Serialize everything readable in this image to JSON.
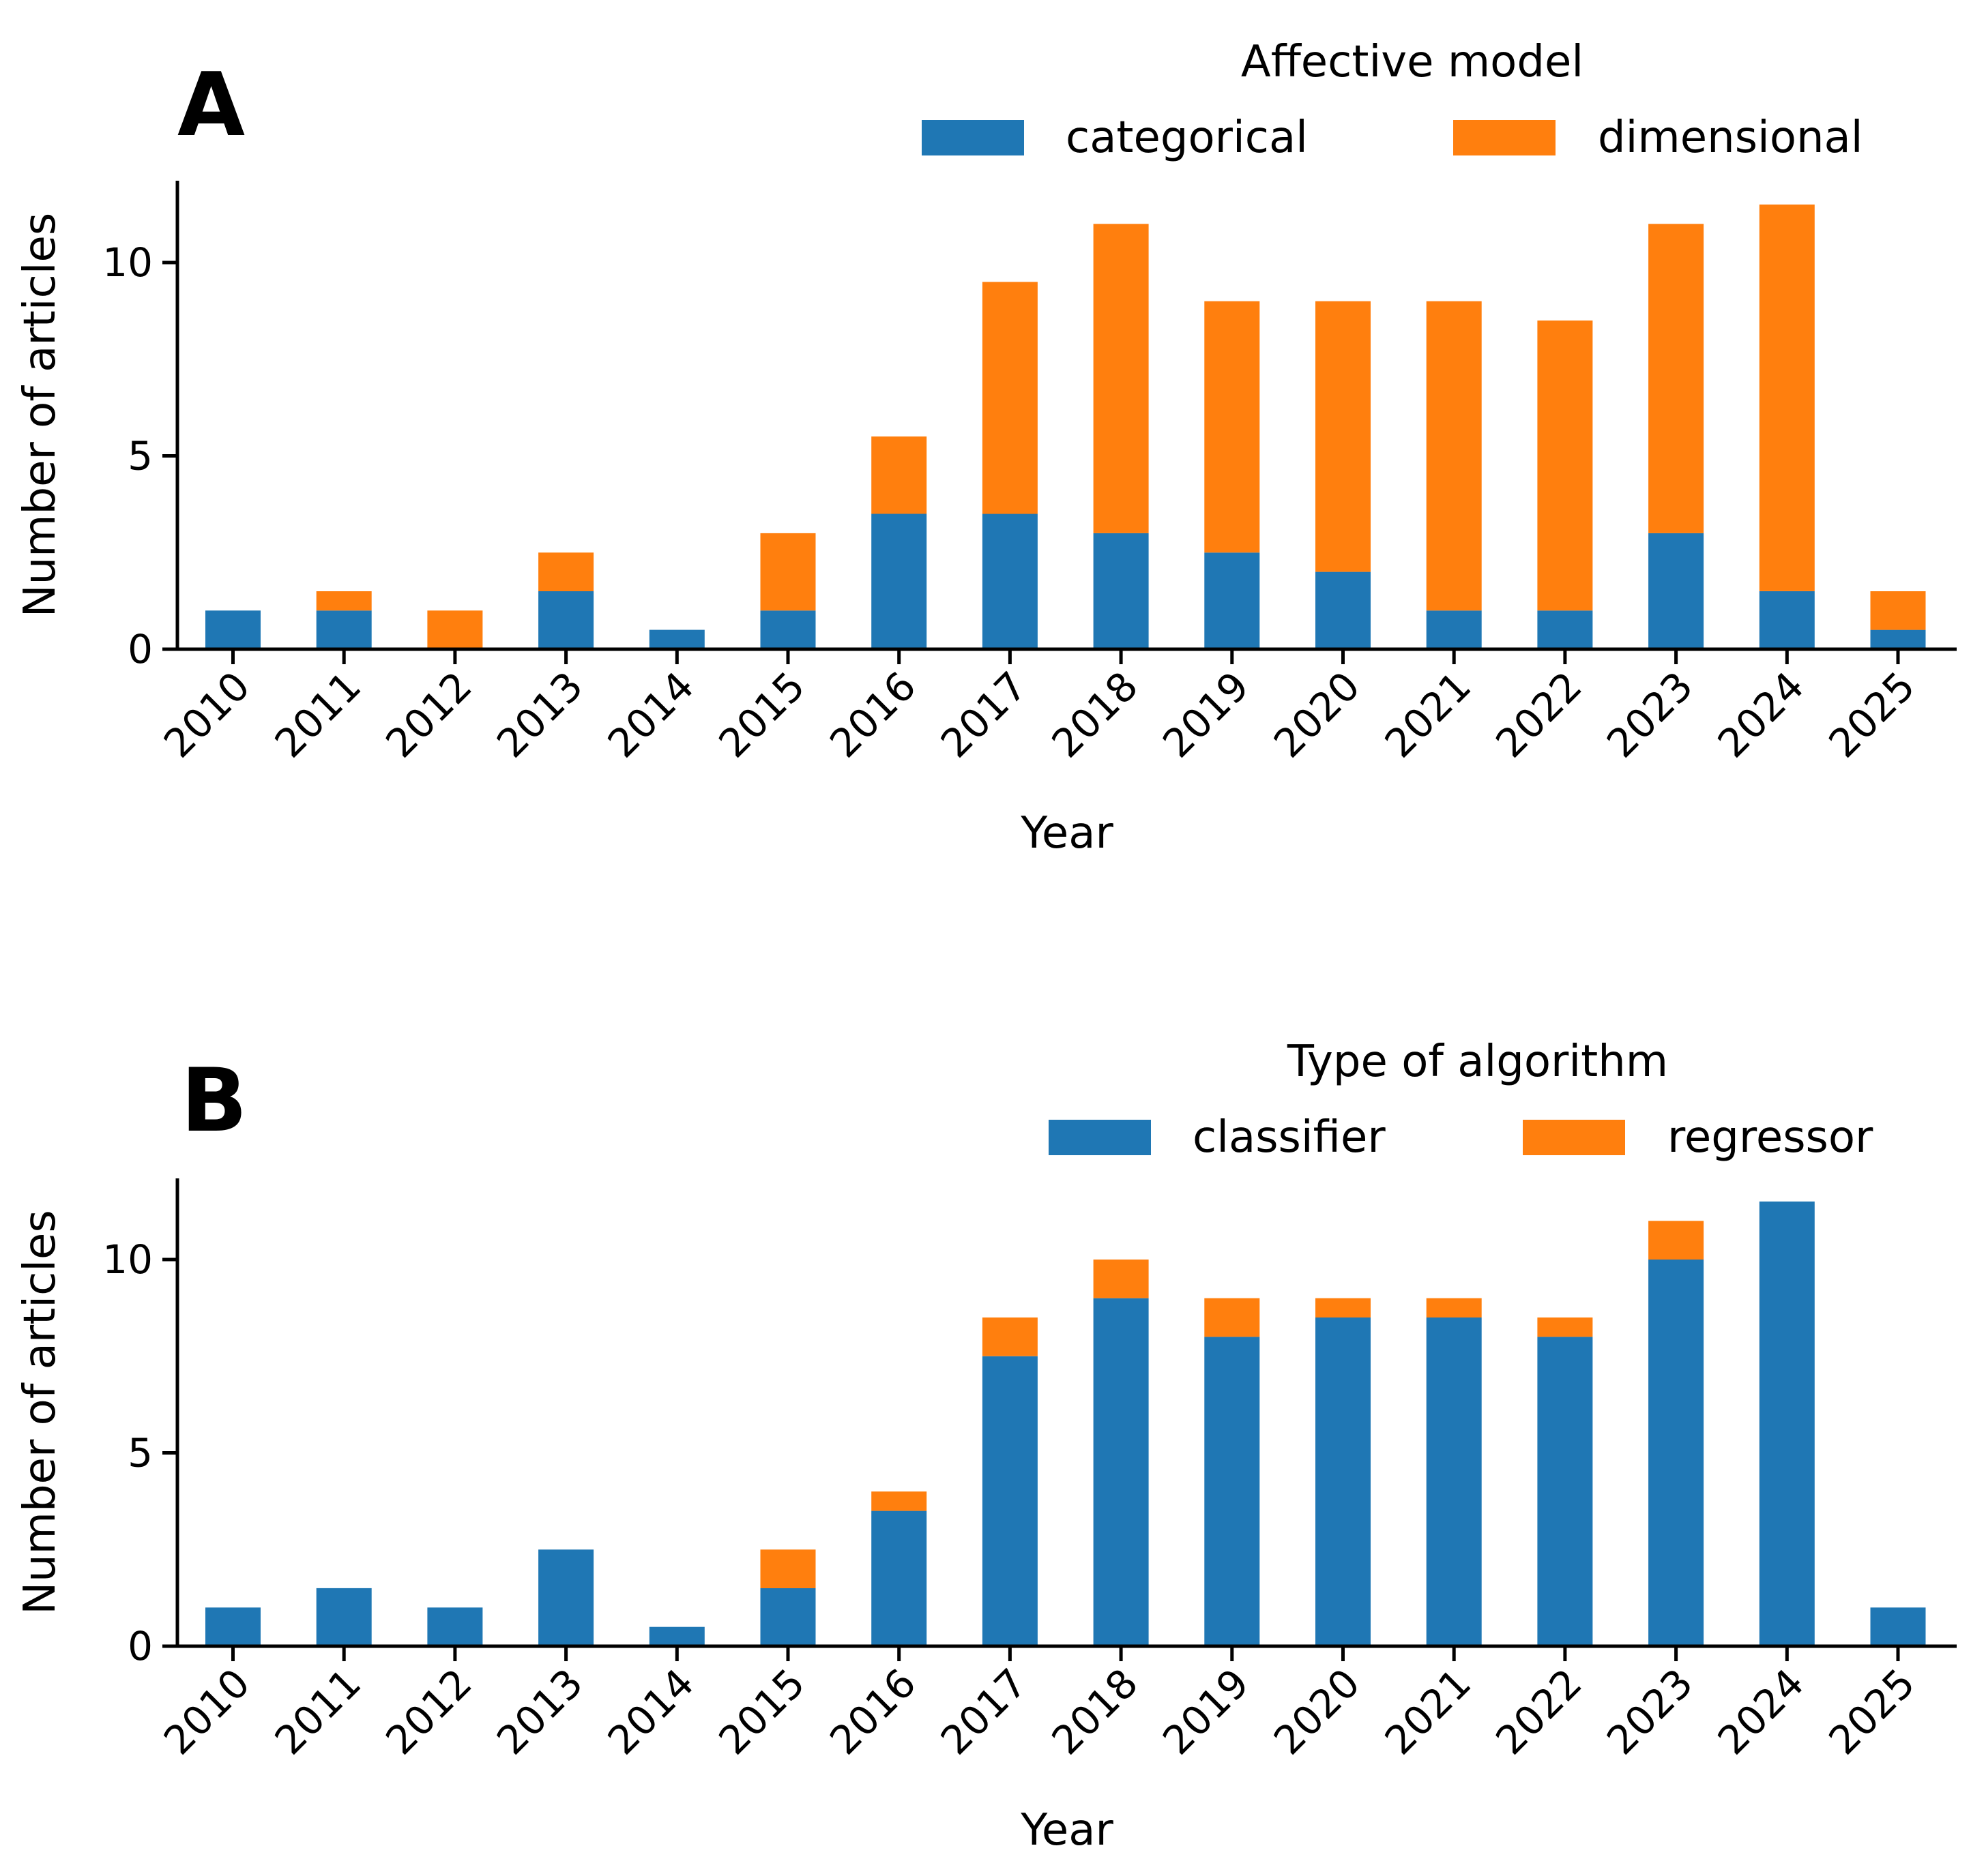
{
  "chart_data": [
    {
      "type": "bar",
      "stacked": true,
      "panel": "A",
      "title": "",
      "xlabel": "Year",
      "ylabel": "Number of articles",
      "ylim": [
        0,
        12
      ],
      "yticks": [
        0,
        5,
        10
      ],
      "legend_title": "Affective model",
      "legend_position": "top-right",
      "categories": [
        "2010",
        "2011",
        "2012",
        "2013",
        "2014",
        "2015",
        "2016",
        "2017",
        "2018",
        "2019",
        "2020",
        "2021",
        "2022",
        "2023",
        "2024",
        "2025"
      ],
      "series": [
        {
          "name": "categorical",
          "color": "#1f77b4",
          "values": [
            1,
            1,
            0,
            1.5,
            0.5,
            1,
            3.5,
            3.5,
            3,
            2.5,
            2,
            1,
            1,
            3,
            1.5,
            0.5
          ]
        },
        {
          "name": "dimensional",
          "color": "#ff7f0e",
          "values": [
            0,
            0.5,
            1,
            1,
            0,
            2,
            2,
            6,
            8,
            6.5,
            7,
            8,
            7.5,
            8,
            10,
            1
          ]
        }
      ]
    },
    {
      "type": "bar",
      "stacked": true,
      "panel": "B",
      "title": "",
      "xlabel": "Year",
      "ylabel": "Number of articles",
      "ylim": [
        0,
        12
      ],
      "yticks": [
        0,
        5,
        10
      ],
      "legend_title": "Type of algorithm",
      "legend_position": "top-right",
      "categories": [
        "2010",
        "2011",
        "2012",
        "2013",
        "2014",
        "2015",
        "2016",
        "2017",
        "2018",
        "2019",
        "2020",
        "2021",
        "2022",
        "2023",
        "2024",
        "2025"
      ],
      "series": [
        {
          "name": "classifier",
          "color": "#1f77b4",
          "values": [
            1,
            1.5,
            1,
            2.5,
            0.5,
            1.5,
            3.5,
            7.5,
            9,
            8,
            8.5,
            8.5,
            8,
            10,
            11.5,
            1
          ]
        },
        {
          "name": "regressor",
          "color": "#ff7f0e",
          "values": [
            0,
            0,
            0,
            0,
            0,
            1,
            0.5,
            1,
            1,
            1,
            0.5,
            0.5,
            0.5,
            1,
            0,
            0
          ]
        }
      ]
    }
  ]
}
